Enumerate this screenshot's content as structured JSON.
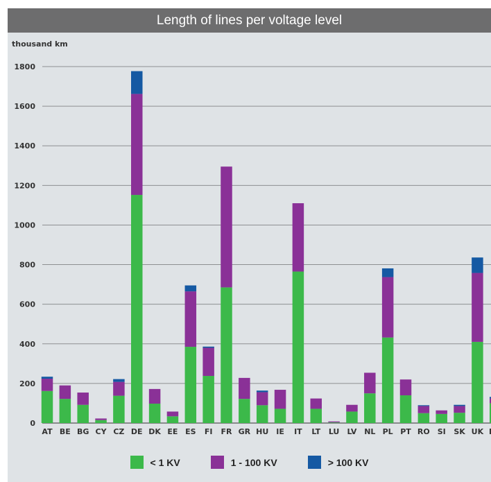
{
  "title": "Length of lines per voltage level",
  "chart_data": {
    "type": "bar",
    "stacked": true,
    "title": "Length of lines per voltage level",
    "ylabel": "thousand km",
    "ylim": [
      0,
      1800
    ],
    "yticks": [
      0,
      200,
      400,
      600,
      800,
      1000,
      1200,
      1400,
      1600,
      1800
    ],
    "grid": true,
    "legend_position": "bottom",
    "categories": [
      "AT",
      "BE",
      "BG",
      "CY",
      "CZ",
      "DE",
      "DK",
      "EE",
      "ES",
      "FI",
      "FR",
      "GR",
      "HU",
      "IE",
      "IT",
      "LT",
      "LU",
      "LV",
      "NL",
      "PL",
      "PT",
      "RO",
      "SI",
      "SK",
      "UK",
      "NO"
    ],
    "series": [
      {
        "name": "< 1 KV",
        "color": "#3cb94a",
        "values": [
          162,
          122,
          92,
          15,
          138,
          1152,
          98,
          34,
          385,
          238,
          685,
          122,
          90,
          72,
          765,
          72,
          3,
          58,
          150,
          432,
          140,
          50,
          46,
          52,
          410,
          100
        ]
      },
      {
        "name": "1 - 100 KV",
        "color": "#8a3197",
        "values": [
          62,
          68,
          62,
          8,
          70,
          510,
          74,
          24,
          280,
          142,
          610,
          106,
          66,
          96,
          345,
          52,
          5,
          34,
          104,
          305,
          80,
          36,
          18,
          34,
          348,
          24
        ]
      },
      {
        "name": "> 100 KV",
        "color": "#1559a3",
        "values": [
          10,
          0,
          0,
          0,
          14,
          115,
          0,
          0,
          30,
          6,
          0,
          0,
          8,
          0,
          0,
          0,
          0,
          0,
          0,
          44,
          0,
          4,
          0,
          6,
          78,
          8
        ]
      }
    ]
  }
}
